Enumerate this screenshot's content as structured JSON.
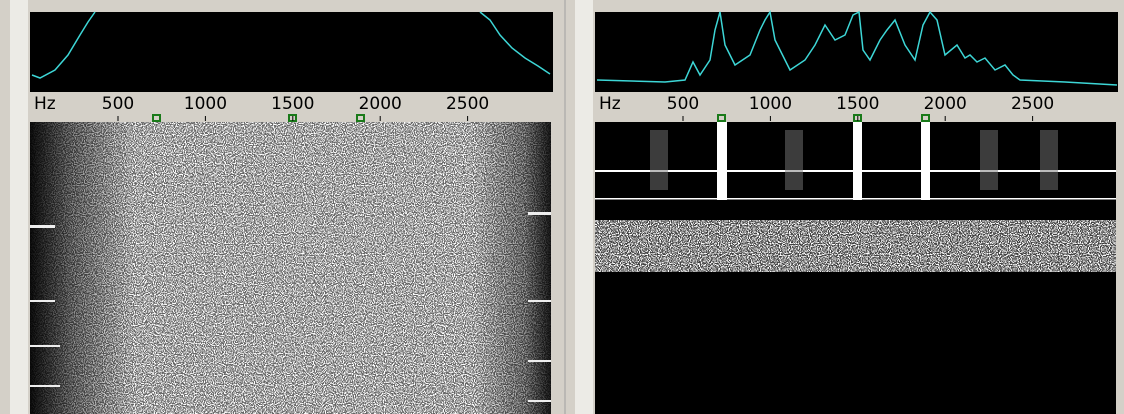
{
  "panels": [
    {
      "axis_unit": "Hz",
      "ticks": [
        500,
        1000,
        1500,
        2000,
        2500
      ]
    },
    {
      "axis_unit": "Hz",
      "ticks": [
        500,
        1000,
        1500,
        2000,
        2500
      ]
    }
  ]
}
